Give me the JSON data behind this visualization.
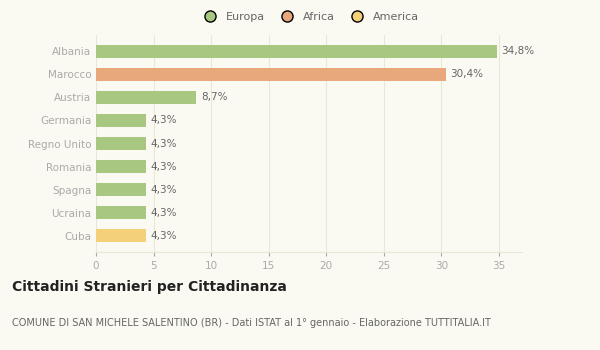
{
  "categories": [
    "Albania",
    "Marocco",
    "Austria",
    "Germania",
    "Regno Unito",
    "Romania",
    "Spagna",
    "Ucraina",
    "Cuba"
  ],
  "values": [
    34.8,
    30.4,
    8.7,
    4.3,
    4.3,
    4.3,
    4.3,
    4.3,
    4.3
  ],
  "labels": [
    "34,8%",
    "30,4%",
    "8,7%",
    "4,3%",
    "4,3%",
    "4,3%",
    "4,3%",
    "4,3%",
    "4,3%"
  ],
  "bar_colors": [
    "#a8c882",
    "#e8a87c",
    "#a8c882",
    "#a8c882",
    "#a8c882",
    "#a8c882",
    "#a8c882",
    "#a8c882",
    "#f5d07a"
  ],
  "legend_labels": [
    "Europa",
    "Africa",
    "America"
  ],
  "legend_colors": [
    "#a8c882",
    "#e8a87c",
    "#f5d07a"
  ],
  "xlim": [
    0,
    37
  ],
  "xticks": [
    0,
    5,
    10,
    15,
    20,
    25,
    30,
    35
  ],
  "title": "Cittadini Stranieri per Cittadinanza",
  "subtitle": "COMUNE DI SAN MICHELE SALENTINO (BR) - Dati ISTAT al 1° gennaio - Elaborazione TUTTITALIA.IT",
  "bg_color": "#fafaf2",
  "grid_color": "#e8e8d8",
  "bar_height": 0.55,
  "label_fontsize": 7.5,
  "tick_fontsize": 7.5,
  "ytick_fontsize": 7.5,
  "legend_fontsize": 8,
  "title_fontsize": 10,
  "subtitle_fontsize": 7
}
